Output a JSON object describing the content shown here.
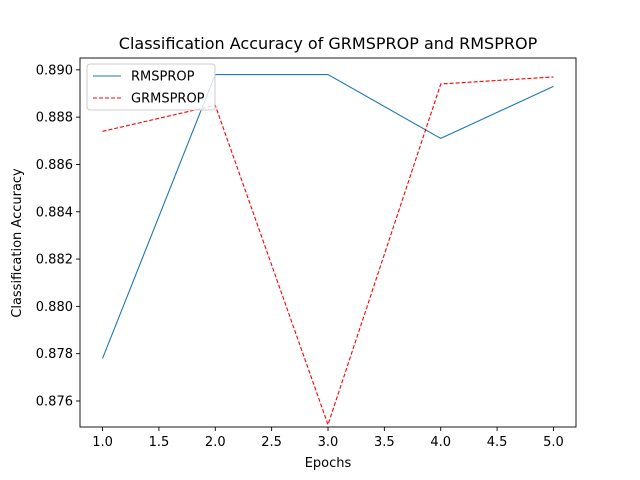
{
  "chart_data": {
    "type": "line",
    "title": "Classification Accuracy of GRMSPROP and RMSPROP",
    "xlabel": "Epochs",
    "ylabel": "Classification Accuracy",
    "x": [
      1.0,
      2.0,
      3.0,
      4.0,
      5.0
    ],
    "xlim": [
      0.8,
      5.2
    ],
    "ylim": [
      0.8749,
      0.8905
    ],
    "xticks": [
      1.0,
      1.5,
      2.0,
      2.5,
      3.0,
      3.5,
      4.0,
      4.5,
      5.0
    ],
    "xtick_labels": [
      "1.0",
      "1.5",
      "2.0",
      "2.5",
      "3.0",
      "3.5",
      "4.0",
      "4.5",
      "5.0"
    ],
    "yticks": [
      0.876,
      0.878,
      0.88,
      0.882,
      0.884,
      0.886,
      0.888,
      0.89
    ],
    "ytick_labels": [
      "0.876",
      "0.878",
      "0.880",
      "0.882",
      "0.884",
      "0.886",
      "0.888",
      "0.890"
    ],
    "grid": false,
    "legend_position": "top-left",
    "series": [
      {
        "name": "RMSPROP",
        "values": [
          0.8778,
          0.8898,
          0.8898,
          0.8871,
          0.8893
        ],
        "color": "#1f77b4",
        "style": "solid"
      },
      {
        "name": "GRMSPROP",
        "values": [
          0.8874,
          0.8885,
          0.875,
          0.8894,
          0.8897
        ],
        "color": "#ff0000",
        "style": "dashed"
      }
    ]
  }
}
